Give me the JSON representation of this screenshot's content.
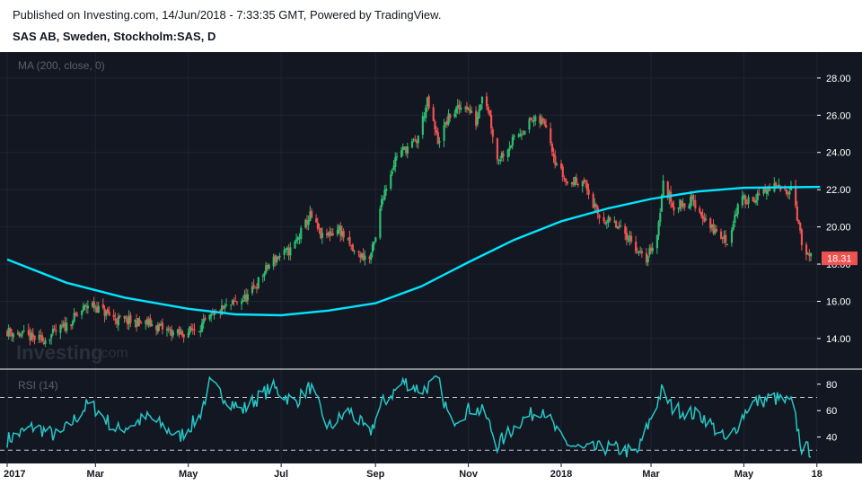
{
  "header": {
    "published": "Published on Investing.com, 14/Jun/2018 - 7:33:35 GMT, Powered by TradingView.",
    "symbol": "SAS AB, Sweden, Stockholm:SAS, D"
  },
  "watermark": {
    "brand": "Investing",
    "suffix": ".com"
  },
  "chart_data": [
    {
      "type": "candlestick",
      "indicator_label": "MA (200, close, 0)",
      "ylim": [
        12.5,
        29.2
      ],
      "y_ticks": [
        "14.00",
        "16.00",
        "18.00",
        "20.00",
        "22.00",
        "24.00",
        "26.00",
        "28.00"
      ],
      "last_price": "18.31",
      "x_ticks": [
        "2017",
        "Mar",
        "May",
        "Jul",
        "Sep",
        "Nov",
        "2018",
        "Mar",
        "May",
        "18"
      ],
      "x_range": [
        "2017-01-02",
        "2018-06-14"
      ],
      "close_path": [
        [
          "2017-01-02",
          14.4
        ],
        [
          "2017-01-25",
          13.9
        ],
        [
          "2017-02-10",
          14.7
        ],
        [
          "2017-02-25",
          15.9
        ],
        [
          "2017-03-15",
          15.0
        ],
        [
          "2017-04-05",
          14.8
        ],
        [
          "2017-04-25",
          14.2
        ],
        [
          "2017-05-08",
          14.6
        ],
        [
          "2017-05-22",
          15.5
        ],
        [
          "2017-06-10",
          16.3
        ],
        [
          "2017-06-25",
          18.2
        ],
        [
          "2017-07-08",
          18.8
        ],
        [
          "2017-07-20",
          20.6
        ],
        [
          "2017-07-28",
          19.4
        ],
        [
          "2017-08-08",
          19.9
        ],
        [
          "2017-08-18",
          18.6
        ],
        [
          "2017-08-28",
          18.3
        ],
        [
          "2017-09-02",
          19.6
        ],
        [
          "2017-09-05",
          21.5
        ],
        [
          "2017-09-15",
          23.9
        ],
        [
          "2017-09-28",
          24.6
        ],
        [
          "2017-10-05",
          26.7
        ],
        [
          "2017-10-12",
          24.6
        ],
        [
          "2017-10-20",
          26.0
        ],
        [
          "2017-10-30",
          26.6
        ],
        [
          "2017-11-06",
          25.6
        ],
        [
          "2017-11-10",
          27.2
        ],
        [
          "2017-11-14",
          26.4
        ],
        [
          "2017-11-20",
          23.6
        ],
        [
          "2017-11-30",
          24.6
        ],
        [
          "2017-12-12",
          25.7
        ],
        [
          "2017-12-22",
          25.6
        ],
        [
          "2017-12-28",
          23.6
        ],
        [
          "2018-01-05",
          22.3
        ],
        [
          "2018-01-15",
          22.6
        ],
        [
          "2018-01-25",
          20.6
        ],
        [
          "2018-02-05",
          20.1
        ],
        [
          "2018-02-15",
          19.4
        ],
        [
          "2018-02-25",
          18.1
        ],
        [
          "2018-03-05",
          19.6
        ],
        [
          "2018-03-09",
          22.3
        ],
        [
          "2018-03-16",
          21.1
        ],
        [
          "2018-03-28",
          21.4
        ],
        [
          "2018-04-10",
          19.9
        ],
        [
          "2018-04-20",
          19.2
        ],
        [
          "2018-04-28",
          21.4
        ],
        [
          "2018-05-10",
          21.6
        ],
        [
          "2018-05-20",
          22.2
        ],
        [
          "2018-05-28",
          21.9
        ],
        [
          "2018-06-02",
          22.3
        ],
        [
          "2018-06-05",
          20.6
        ],
        [
          "2018-06-09",
          18.6
        ],
        [
          "2018-06-14",
          18.31
        ]
      ],
      "ma200": [
        [
          "2017-01-02",
          18.25
        ],
        [
          "2017-02-10",
          17.0
        ],
        [
          "2017-03-20",
          16.2
        ],
        [
          "2017-05-01",
          15.6
        ],
        [
          "2017-06-01",
          15.3
        ],
        [
          "2017-07-01",
          15.25
        ],
        [
          "2017-08-01",
          15.5
        ],
        [
          "2017-09-01",
          15.9
        ],
        [
          "2017-10-01",
          16.8
        ],
        [
          "2017-11-01",
          18.1
        ],
        [
          "2017-12-01",
          19.3
        ],
        [
          "2018-01-01",
          20.3
        ],
        [
          "2018-02-01",
          21.0
        ],
        [
          "2018-03-01",
          21.5
        ],
        [
          "2018-04-01",
          21.9
        ],
        [
          "2018-05-01",
          22.1
        ],
        [
          "2018-06-20",
          22.15
        ]
      ]
    },
    {
      "type": "line",
      "indicator_label": "RSI (14)",
      "ylim": [
        20,
        88
      ],
      "y_ticks": [
        "40",
        "60",
        "80"
      ],
      "levels": [
        30,
        70
      ],
      "rsi_path": [
        [
          "2017-01-02",
          38
        ],
        [
          "2017-01-20",
          48
        ],
        [
          "2017-02-05",
          40
        ],
        [
          "2017-02-25",
          66
        ],
        [
          "2017-03-15",
          45
        ],
        [
          "2017-04-05",
          55
        ],
        [
          "2017-04-25",
          40
        ],
        [
          "2017-05-08",
          55
        ],
        [
          "2017-05-15",
          80
        ],
        [
          "2017-06-05",
          60
        ],
        [
          "2017-06-25",
          78
        ],
        [
          "2017-07-10",
          66
        ],
        [
          "2017-07-20",
          78
        ],
        [
          "2017-08-01",
          47
        ],
        [
          "2017-08-15",
          60
        ],
        [
          "2017-08-28",
          42
        ],
        [
          "2017-09-05",
          65
        ],
        [
          "2017-09-20",
          82
        ],
        [
          "2017-10-01",
          75
        ],
        [
          "2017-10-12",
          83
        ],
        [
          "2017-10-20",
          52
        ],
        [
          "2017-11-03",
          62
        ],
        [
          "2017-11-12",
          58
        ],
        [
          "2017-11-20",
          34
        ],
        [
          "2017-12-05",
          52
        ],
        [
          "2017-12-20",
          62
        ],
        [
          "2018-01-01",
          38
        ],
        [
          "2018-01-15",
          30
        ],
        [
          "2018-02-01",
          32
        ],
        [
          "2018-02-20",
          28
        ],
        [
          "2018-03-08",
          75
        ],
        [
          "2018-03-15",
          62
        ],
        [
          "2018-04-05",
          55
        ],
        [
          "2018-04-20",
          36
        ],
        [
          "2018-05-05",
          65
        ],
        [
          "2018-05-20",
          70
        ],
        [
          "2018-06-02",
          65
        ],
        [
          "2018-06-08",
          32
        ],
        [
          "2018-06-14",
          30
        ]
      ]
    }
  ],
  "colors": {
    "background": "#131722",
    "up": "#26a69a",
    "up_bright": "#2ebd6f",
    "down": "#ef5350",
    "ma": "#00e5ff",
    "rsi": "#26c6c6",
    "grid": "#1f2433",
    "axis_text": "#ffffff",
    "label_text": "#5d606b",
    "price_tag": "#ef5350",
    "divider": "#ffffff"
  }
}
